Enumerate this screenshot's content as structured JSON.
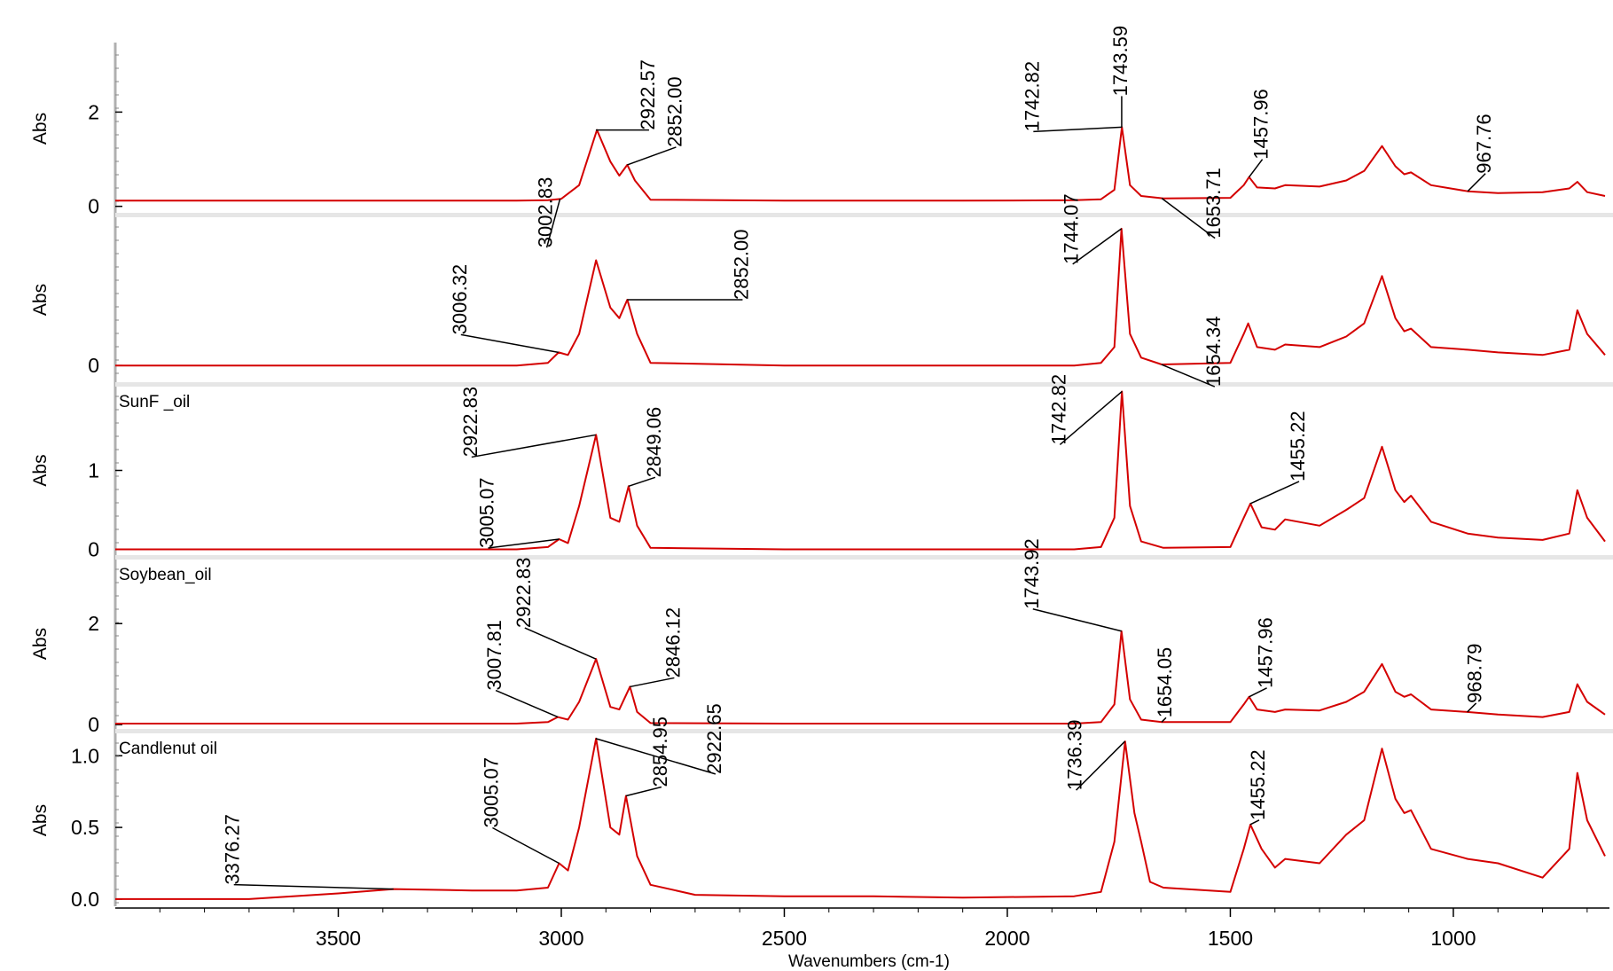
{
  "colors": {
    "trace": "#d40000",
    "axis": "#000000",
    "separator": "#e6e6e6",
    "peak_line": "#000000"
  },
  "chart_data": {
    "type": "line",
    "title": "",
    "xlabel": "Wavenumbers (cm-1)",
    "xlim": [
      4000,
      650
    ],
    "x_reversed": true,
    "x_ticks": [
      "3500",
      "3000",
      "2500",
      "2000",
      "1500",
      "1000"
    ],
    "x_tick_values": [
      3500,
      3000,
      2500,
      2000,
      1500,
      1000
    ],
    "grid": false,
    "legend": "none",
    "panels": [
      {
        "label": "",
        "ylabel": "Abs",
        "ylim": [
          -0.1,
          3.4
        ],
        "y_ticks": [
          {
            "value": 0,
            "label": "0"
          },
          {
            "value": 2,
            "label": "2"
          }
        ],
        "x": [
          4000,
          3100,
          3030,
          3000,
          2960,
          2920,
          2890,
          2870,
          2852,
          2835,
          2800,
          2500,
          2100,
          1850,
          1790,
          1760,
          1743,
          1725,
          1700,
          1650,
          1500,
          1470,
          1458,
          1440,
          1400,
          1377,
          1300,
          1240,
          1200,
          1160,
          1130,
          1110,
          1095,
          1050,
          968,
          900,
          800,
          740,
          722,
          700,
          660
        ],
        "y": [
          0.12,
          0.12,
          0.13,
          0.16,
          0.45,
          1.62,
          0.95,
          0.65,
          0.88,
          0.55,
          0.14,
          0.12,
          0.12,
          0.13,
          0.15,
          0.35,
          1.68,
          0.45,
          0.22,
          0.17,
          0.18,
          0.45,
          0.62,
          0.4,
          0.38,
          0.45,
          0.42,
          0.55,
          0.75,
          1.28,
          0.85,
          0.68,
          0.72,
          0.45,
          0.32,
          0.28,
          0.3,
          0.38,
          0.52,
          0.3,
          0.22
        ],
        "annotations": [
          {
            "label": "3002.83",
            "x": 3002.83,
            "y": 0.16
          },
          {
            "label": "2922.57",
            "x": 2922.57,
            "y": 1.62
          },
          {
            "label": "2852.00",
            "x": 2852.0,
            "y": 0.88
          },
          {
            "label": "1743.59",
            "x": 1743.59,
            "y": 1.68
          },
          {
            "label": "1742.82",
            "x": 1742.82,
            "y": 1.68
          },
          {
            "label": "1653.71",
            "x": 1653.71,
            "y": 0.17
          },
          {
            "label": "1457.96",
            "x": 1457.96,
            "y": 0.62
          },
          {
            "label": "967.76",
            "x": 967.76,
            "y": 0.32
          }
        ]
      },
      {
        "label": "",
        "ylabel": "Abs",
        "ylim": [
          -0.3,
          2.8
        ],
        "y_ticks": [
          {
            "value": 0,
            "label": "0"
          }
        ],
        "x": [
          4000,
          3100,
          3030,
          3006,
          2985,
          2960,
          2922,
          2890,
          2870,
          2852,
          2830,
          2800,
          2500,
          2100,
          1850,
          1790,
          1760,
          1744,
          1725,
          1700,
          1654,
          1500,
          1470,
          1460,
          1440,
          1400,
          1377,
          1300,
          1240,
          1200,
          1160,
          1130,
          1110,
          1095,
          1050,
          968,
          900,
          800,
          740,
          722,
          700,
          660
        ],
        "y": [
          0.0,
          0.0,
          0.05,
          0.25,
          0.2,
          0.6,
          2.0,
          1.1,
          0.9,
          1.25,
          0.6,
          0.05,
          0.0,
          0.0,
          0.0,
          0.05,
          0.35,
          2.6,
          0.6,
          0.15,
          0.02,
          0.05,
          0.6,
          0.8,
          0.35,
          0.3,
          0.4,
          0.35,
          0.55,
          0.8,
          1.7,
          0.9,
          0.65,
          0.7,
          0.35,
          0.3,
          0.25,
          0.2,
          0.3,
          1.05,
          0.6,
          0.2
        ],
        "annotations": [
          {
            "label": "3006.32",
            "x": 3006.32,
            "y": 0.25
          },
          {
            "label": "2852.00",
            "x": 2852.0,
            "y": 1.25
          },
          {
            "label": "1744.07",
            "x": 1744.07,
            "y": 2.6
          },
          {
            "label": "1654.34",
            "x": 1654.34,
            "y": 0.02
          }
        ]
      },
      {
        "label": "SunF _oil",
        "ylabel": "Abs",
        "ylim": [
          -0.05,
          2.05
        ],
        "y_ticks": [
          {
            "value": 0,
            "label": "0"
          },
          {
            "value": 1,
            "label": "1"
          }
        ],
        "x": [
          4000,
          3100,
          3030,
          3005,
          2985,
          2960,
          2922,
          2890,
          2870,
          2849,
          2830,
          2800,
          2500,
          2100,
          1850,
          1790,
          1760,
          1743,
          1725,
          1700,
          1650,
          1500,
          1470,
          1455,
          1430,
          1400,
          1377,
          1300,
          1240,
          1200,
          1160,
          1130,
          1110,
          1095,
          1050,
          968,
          900,
          800,
          740,
          722,
          700,
          660
        ],
        "y": [
          0.0,
          0.0,
          0.03,
          0.13,
          0.08,
          0.55,
          1.45,
          0.4,
          0.35,
          0.8,
          0.3,
          0.02,
          0.0,
          0.0,
          0.0,
          0.03,
          0.4,
          2.0,
          0.55,
          0.1,
          0.02,
          0.03,
          0.4,
          0.58,
          0.28,
          0.25,
          0.38,
          0.3,
          0.5,
          0.65,
          1.3,
          0.75,
          0.6,
          0.68,
          0.35,
          0.2,
          0.15,
          0.12,
          0.2,
          0.75,
          0.4,
          0.1
        ],
        "annotations": [
          {
            "label": "3005.07",
            "x": 3005.07,
            "y": 0.13
          },
          {
            "label": "2922.83",
            "x": 2922.83,
            "y": 1.45
          },
          {
            "label": "2849.06",
            "x": 2849.06,
            "y": 0.8
          },
          {
            "label": "1742.82",
            "x": 1742.82,
            "y": 2.0
          },
          {
            "label": "1455.22",
            "x": 1455.22,
            "y": 0.58
          }
        ]
      },
      {
        "label": "Soybean_oil",
        "ylabel": "Abs",
        "ylim": [
          -0.05,
          3.25
        ],
        "y_ticks": [
          {
            "value": 0,
            "label": "0"
          },
          {
            "value": 2,
            "label": "2"
          }
        ],
        "x": [
          4000,
          3100,
          3030,
          3008,
          2985,
          2960,
          2922,
          2890,
          2870,
          2846,
          2830,
          2800,
          2500,
          2100,
          1850,
          1790,
          1760,
          1744,
          1725,
          1700,
          1654,
          1500,
          1470,
          1458,
          1440,
          1400,
          1377,
          1300,
          1240,
          1200,
          1160,
          1130,
          1110,
          1095,
          1050,
          969,
          900,
          800,
          740,
          722,
          700,
          660
        ],
        "y": [
          0.02,
          0.02,
          0.05,
          0.15,
          0.1,
          0.45,
          1.3,
          0.35,
          0.3,
          0.75,
          0.25,
          0.03,
          0.02,
          0.02,
          0.02,
          0.05,
          0.4,
          1.85,
          0.5,
          0.1,
          0.05,
          0.05,
          0.4,
          0.55,
          0.3,
          0.25,
          0.3,
          0.28,
          0.45,
          0.65,
          1.2,
          0.65,
          0.55,
          0.6,
          0.3,
          0.25,
          0.2,
          0.15,
          0.25,
          0.8,
          0.45,
          0.2
        ],
        "annotations": [
          {
            "label": "3007.81",
            "x": 3007.81,
            "y": 0.15
          },
          {
            "label": "2922.83",
            "x": 2922.83,
            "y": 1.3
          },
          {
            "label": "2846.12",
            "x": 2846.12,
            "y": 0.75
          },
          {
            "label": "1743.92",
            "x": 1743.92,
            "y": 1.85
          },
          {
            "label": "1654.05",
            "x": 1654.05,
            "y": 0.05
          },
          {
            "label": "1457.96",
            "x": 1457.96,
            "y": 0.55
          },
          {
            "label": "968.79",
            "x": 968.79,
            "y": 0.25
          }
        ]
      },
      {
        "label": "Candlenut oil",
        "ylabel": "Abs",
        "ylim": [
          -0.05,
          1.15
        ],
        "y_ticks": [
          {
            "value": 0.0,
            "label": "0.0"
          },
          {
            "value": 0.5,
            "label": "0.5"
          },
          {
            "value": 1.0,
            "label": "1.0"
          }
        ],
        "x": [
          4000,
          3700,
          3500,
          3376,
          3200,
          3100,
          3030,
          3005,
          2985,
          2960,
          2922,
          2890,
          2870,
          2855,
          2830,
          2800,
          2700,
          2500,
          2300,
          2100,
          1850,
          1790,
          1760,
          1736,
          1715,
          1700,
          1680,
          1650,
          1500,
          1470,
          1455,
          1430,
          1400,
          1377,
          1300,
          1240,
          1200,
          1160,
          1130,
          1110,
          1095,
          1050,
          968,
          900,
          800,
          740,
          722,
          700,
          660
        ],
        "y": [
          0.0,
          0.0,
          0.04,
          0.07,
          0.06,
          0.06,
          0.08,
          0.25,
          0.2,
          0.5,
          1.12,
          0.5,
          0.45,
          0.72,
          0.3,
          0.1,
          0.03,
          0.02,
          0.02,
          0.01,
          0.02,
          0.05,
          0.4,
          1.1,
          0.6,
          0.4,
          0.12,
          0.08,
          0.05,
          0.35,
          0.52,
          0.35,
          0.22,
          0.28,
          0.25,
          0.45,
          0.55,
          1.05,
          0.7,
          0.6,
          0.62,
          0.35,
          0.28,
          0.25,
          0.15,
          0.35,
          0.88,
          0.55,
          0.3
        ],
        "annotations": [
          {
            "label": "3376.27",
            "x": 3376.27,
            "y": 0.07
          },
          {
            "label": "3005.07",
            "x": 3005.07,
            "y": 0.25
          },
          {
            "label": "2922.65",
            "x": 2922.65,
            "y": 1.12
          },
          {
            "label": "2854.95",
            "x": 2854.95,
            "y": 0.72
          },
          {
            "label": "1736.39",
            "x": 1736.39,
            "y": 1.1
          },
          {
            "label": "1455.22",
            "x": 1455.22,
            "y": 0.52
          }
        ]
      }
    ]
  }
}
